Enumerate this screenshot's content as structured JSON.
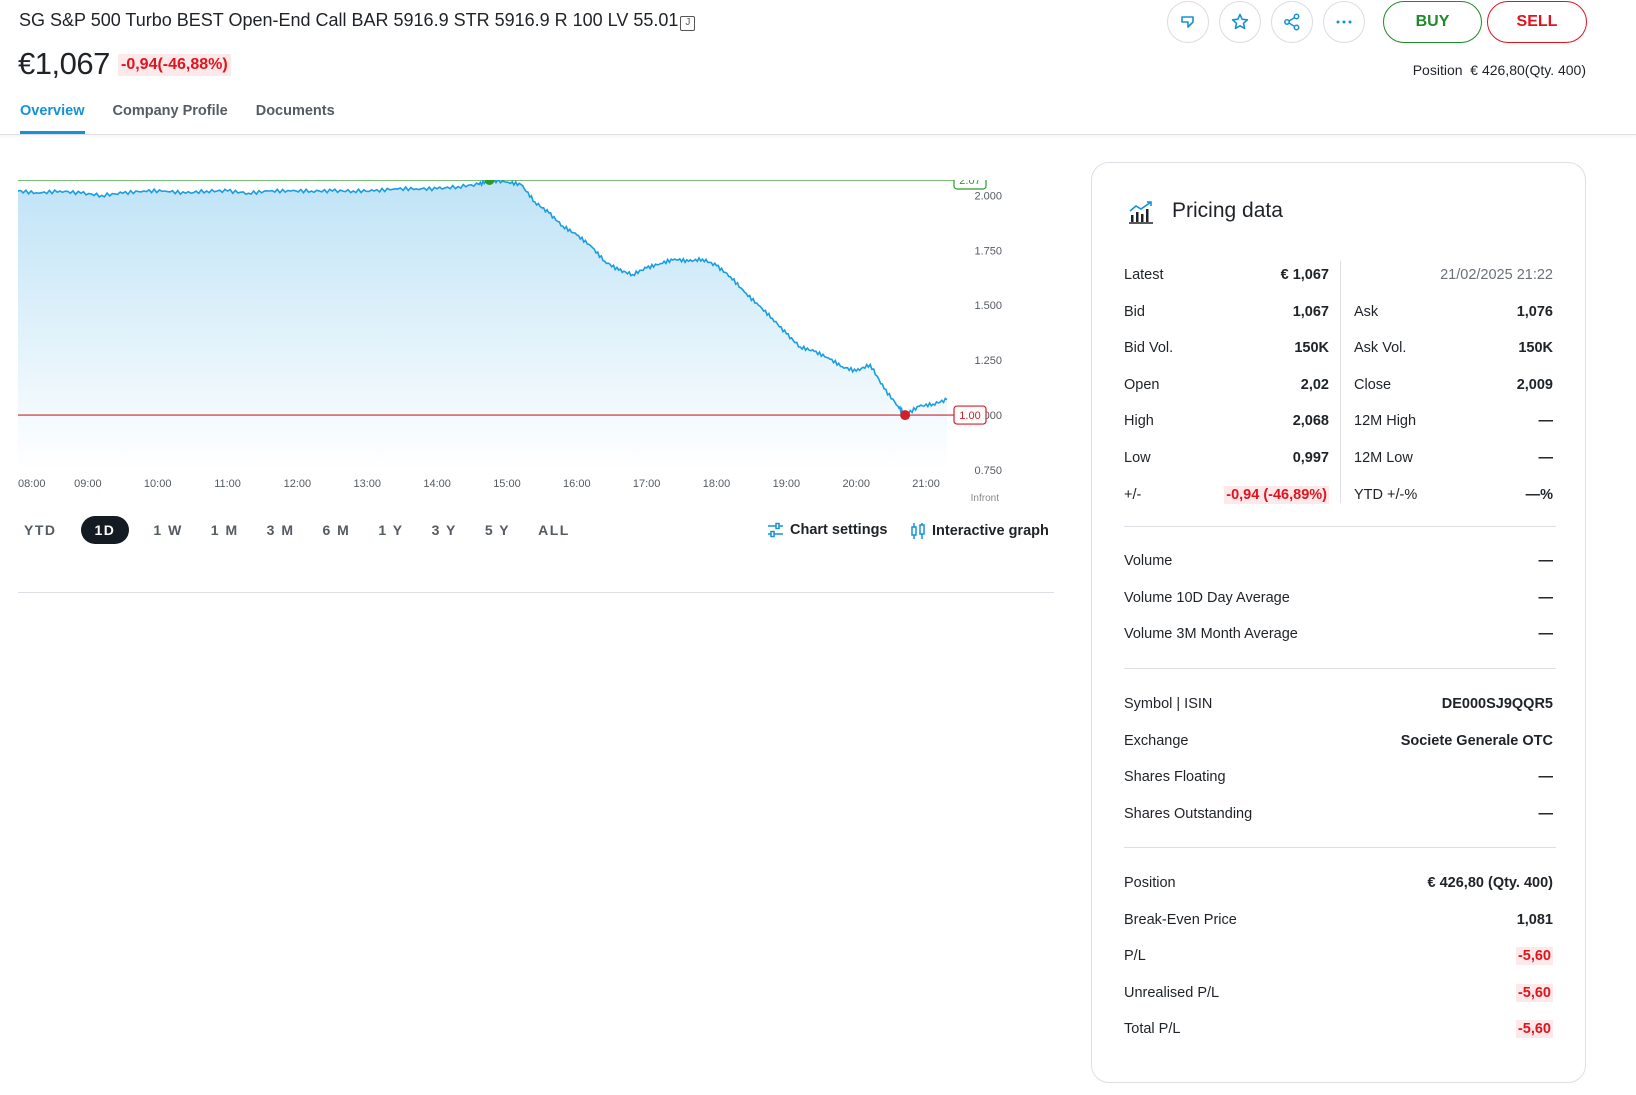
{
  "header": {
    "title": "SG S&P 500 Turbo BEST Open-End Call BAR 5916.9 STR 5916.9 R 100 LV 55.01",
    "title_icon": "J",
    "price": "€1,067",
    "change": "-0,94(-46,88%)",
    "position_label": "Position",
    "position_value": "€ 426,80(Qty. 400)",
    "buy_label": "BUY",
    "sell_label": "SELL",
    "icons": [
      "tag-icon",
      "star-icon",
      "share-icon",
      "more-icon"
    ]
  },
  "tabs": [
    {
      "label": "Overview",
      "active": true
    },
    {
      "label": "Company Profile",
      "active": false
    },
    {
      "label": "Documents",
      "active": false
    }
  ],
  "periods": [
    {
      "label": "YTD",
      "active": false
    },
    {
      "label": "1D",
      "active": true
    },
    {
      "label": "1 W",
      "active": false
    },
    {
      "label": "1 M",
      "active": false
    },
    {
      "label": "3 M",
      "active": false
    },
    {
      "label": "6 M",
      "active": false
    },
    {
      "label": "1 Y",
      "active": false
    },
    {
      "label": "3 Y",
      "active": false
    },
    {
      "label": "5 Y",
      "active": false
    },
    {
      "label": "ALL",
      "active": false
    }
  ],
  "chart_actions": {
    "settings": "Chart settings",
    "interactive": "Interactive graph"
  },
  "chart_data": {
    "type": "area",
    "x_ticks": [
      "08:00",
      "09:00",
      "10:00",
      "11:00",
      "12:00",
      "13:00",
      "14:00",
      "15:00",
      "16:00",
      "17:00",
      "18:00",
      "19:00",
      "20:00",
      "21:00"
    ],
    "y_ticks": [
      "2.000",
      "1.750",
      "1.500",
      "1.250",
      "1.000",
      "0.750"
    ],
    "ylim": [
      0.75,
      2.07
    ],
    "x_range": [
      8.0,
      21.4
    ],
    "high_marker": {
      "label": "2.07",
      "value": 2.07,
      "time": 14.75
    },
    "low_marker": {
      "label": "1.00",
      "value": 1.0,
      "time": 20.7
    },
    "source": "Infront",
    "line_color": "#1a9ee0",
    "high_color": "#2a9a2a",
    "low_color": "#d0202a",
    "series": [
      {
        "values": [
          [
            8.0,
            2.02
          ],
          [
            8.3,
            2.01
          ],
          [
            8.6,
            2.02
          ],
          [
            8.9,
            2.01
          ],
          [
            9.2,
            2.0
          ],
          [
            9.5,
            2.01
          ],
          [
            9.8,
            2.02
          ],
          [
            10.1,
            2.02
          ],
          [
            10.4,
            2.01
          ],
          [
            10.7,
            2.02
          ],
          [
            11.0,
            2.02
          ],
          [
            11.3,
            2.01
          ],
          [
            11.6,
            2.02
          ],
          [
            11.9,
            2.02
          ],
          [
            12.2,
            2.02
          ],
          [
            12.5,
            2.02
          ],
          [
            12.8,
            2.02
          ],
          [
            13.1,
            2.02
          ],
          [
            13.4,
            2.03
          ],
          [
            13.7,
            2.03
          ],
          [
            14.0,
            2.03
          ],
          [
            14.3,
            2.04
          ],
          [
            14.6,
            2.05
          ],
          [
            14.75,
            2.07
          ],
          [
            15.0,
            2.06
          ],
          [
            15.2,
            2.05
          ],
          [
            15.4,
            1.97
          ],
          [
            15.6,
            1.92
          ],
          [
            15.8,
            1.86
          ],
          [
            16.0,
            1.82
          ],
          [
            16.2,
            1.77
          ],
          [
            16.4,
            1.7
          ],
          [
            16.6,
            1.66
          ],
          [
            16.8,
            1.64
          ],
          [
            17.0,
            1.67
          ],
          [
            17.2,
            1.69
          ],
          [
            17.4,
            1.71
          ],
          [
            17.6,
            1.7
          ],
          [
            17.8,
            1.71
          ],
          [
            18.0,
            1.68
          ],
          [
            18.2,
            1.63
          ],
          [
            18.4,
            1.56
          ],
          [
            18.6,
            1.5
          ],
          [
            18.8,
            1.44
          ],
          [
            19.0,
            1.37
          ],
          [
            19.2,
            1.31
          ],
          [
            19.4,
            1.29
          ],
          [
            19.6,
            1.26
          ],
          [
            19.8,
            1.22
          ],
          [
            20.0,
            1.2
          ],
          [
            20.2,
            1.23
          ],
          [
            20.4,
            1.12
          ],
          [
            20.6,
            1.04
          ],
          [
            20.7,
            1.0
          ],
          [
            20.9,
            1.04
          ],
          [
            21.1,
            1.05
          ],
          [
            21.3,
            1.07
          ]
        ]
      }
    ]
  },
  "pricing": {
    "title": "Pricing data",
    "timestamp": "21/02/2025 21:22",
    "left": [
      {
        "label": "Latest",
        "value": "€ 1,067",
        "red": false
      },
      {
        "label": "Bid",
        "value": "1,067",
        "red": false
      },
      {
        "label": "Bid Vol.",
        "value": "150K",
        "red": false
      },
      {
        "label": "Open",
        "value": "2,02",
        "red": false
      },
      {
        "label": "High",
        "value": "2,068",
        "red": false
      },
      {
        "label": "Low",
        "value": "0,997",
        "red": false
      },
      {
        "label": "+/-",
        "value": "-0,94 (-46,89%)",
        "red": true
      }
    ],
    "right": [
      {
        "label": "Ask",
        "value": "1,076"
      },
      {
        "label": "Ask Vol.",
        "value": "150K"
      },
      {
        "label": "Close",
        "value": "2,009"
      },
      {
        "label": "12M High",
        "value": "—"
      },
      {
        "label": "12M Low",
        "value": "—"
      },
      {
        "label": "YTD +/-%",
        "value": "—%"
      }
    ],
    "volume": [
      {
        "label": "Volume",
        "value": "—"
      },
      {
        "label": "Volume 10D Day Average",
        "value": "—"
      },
      {
        "label": "Volume 3M Month Average",
        "value": "—"
      }
    ],
    "info": [
      {
        "label": "Symbol | ISIN",
        "value": "DE000SJ9QQR5"
      },
      {
        "label": "Exchange",
        "value": "Societe Generale OTC"
      },
      {
        "label": "Shares Floating",
        "value": "—"
      },
      {
        "label": "Shares Outstanding",
        "value": "—"
      }
    ],
    "position": [
      {
        "label": "Position",
        "value": "€ 426,80 (Qty. 400)",
        "red": false
      },
      {
        "label": "Break-Even Price",
        "value": "1,081",
        "red": false
      },
      {
        "label": "P/L",
        "value": "-5,60",
        "red": true
      },
      {
        "label": "Unrealised P/L",
        "value": "-5,60",
        "red": true
      },
      {
        "label": "Total P/L",
        "value": "-5,60",
        "red": true
      }
    ]
  }
}
